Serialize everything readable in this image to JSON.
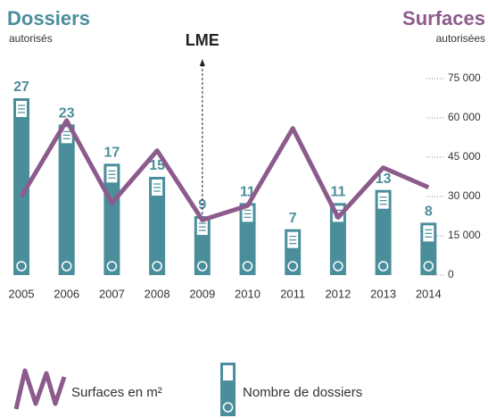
{
  "chart_data": {
    "type": "bar",
    "ylabel": "Dossiers",
    "ylabel_sub": "autorisés",
    "y2label": "Surfaces",
    "y2label_sub": "autorisées",
    "categories": [
      "2005",
      "2006",
      "2007",
      "2008",
      "2009",
      "2010",
      "2011",
      "2012",
      "2013",
      "2014"
    ],
    "series": [
      {
        "name": "Nombre de dossiers",
        "type": "bar",
        "color": "#4b8e9b",
        "values": [
          27,
          23,
          17,
          15,
          9,
          11,
          7,
          11,
          13,
          8
        ]
      },
      {
        "name": "Surfaces en m²",
        "type": "line",
        "axis": "y2",
        "color": "#8c5b8c",
        "values": [
          30000,
          59000,
          27500,
          47500,
          21000,
          26500,
          56000,
          22000,
          41000,
          33500
        ]
      }
    ],
    "ylim": [
      0,
      30
    ],
    "y2lim": [
      0,
      75000
    ],
    "y2ticks": [
      0,
      {
        "value": 15000,
        "label": "15 000"
      },
      {
        "value": 30000,
        "label": "30 000"
      },
      {
        "value": 45000,
        "label": "45 000"
      },
      {
        "value": 60000,
        "label": "60 000"
      },
      {
        "value": 75000,
        "label": "75 000"
      }
    ],
    "annotation": {
      "text": "LME",
      "x": "2009"
    }
  }
}
